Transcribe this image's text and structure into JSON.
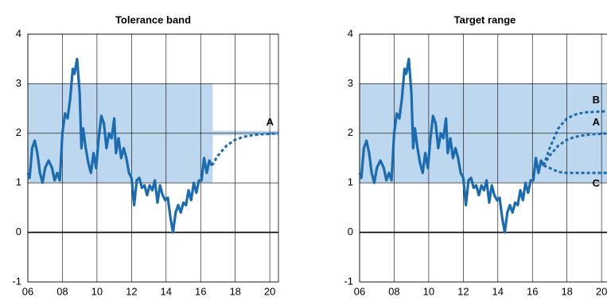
{
  "chart_data": [
    {
      "type": "line",
      "title": "Tolerance band",
      "xlim": [
        2006,
        2020.5
      ],
      "ylim": [
        -1,
        4
      ],
      "yticks": [
        -1,
        0,
        1,
        2,
        3,
        4
      ],
      "xticks": [
        {
          "value": 2006,
          "label": "06"
        },
        {
          "value": 2008,
          "label": "08"
        },
        {
          "value": 2010,
          "label": "10"
        },
        {
          "value": 2012,
          "label": "12"
        },
        {
          "value": 2014,
          "label": "14"
        },
        {
          "value": 2016,
          "label": "16"
        },
        {
          "value": 2018,
          "label": "18"
        },
        {
          "value": 2020,
          "label": "20"
        }
      ],
      "grid": true,
      "band_color": "#bdd7ee",
      "bands": [
        {
          "x": [
            2006,
            2016.7
          ],
          "y": [
            1,
            3
          ]
        },
        {
          "x": [
            2016.7,
            2020.5
          ],
          "y": [
            1.96,
            2.05
          ]
        }
      ],
      "series": [
        {
          "color": "#1a6bb0",
          "dashed": false,
          "x": [
            2006.0,
            2006.1,
            2006.25,
            2006.4,
            2006.55,
            2006.7,
            2006.85,
            2007.0,
            2007.2,
            2007.4,
            2007.55,
            2007.7,
            2007.85,
            2008.0,
            2008.15,
            2008.3,
            2008.45,
            2008.6,
            2008.7,
            2008.85,
            2009.0,
            2009.1,
            2009.2,
            2009.35,
            2009.5,
            2009.65,
            2009.8,
            2009.95,
            2010.1,
            2010.25,
            2010.4,
            2010.55,
            2010.7,
            2010.85,
            2011.0,
            2011.1,
            2011.25,
            2011.4,
            2011.55,
            2011.7,
            2011.85,
            2012.0,
            2012.15,
            2012.3,
            2012.45,
            2012.6,
            2012.75,
            2012.9,
            2013.05,
            2013.2,
            2013.35,
            2013.5,
            2013.65,
            2013.8,
            2013.95,
            2014.1,
            2014.25,
            2014.4,
            2014.55,
            2014.7,
            2014.85,
            2015.0,
            2015.15,
            2015.3,
            2015.45,
            2015.6,
            2015.75,
            2015.9,
            2016.05,
            2016.2,
            2016.35,
            2016.5,
            2016.65
          ],
          "values": [
            1.2,
            1.1,
            1.7,
            1.85,
            1.6,
            1.2,
            1.0,
            1.3,
            1.45,
            1.3,
            1.05,
            1.2,
            1.05,
            2.0,
            2.4,
            2.3,
            2.7,
            3.3,
            3.2,
            3.5,
            2.8,
            1.7,
            2.1,
            1.7,
            1.4,
            1.2,
            1.6,
            1.3,
            1.9,
            2.35,
            2.2,
            1.7,
            2.0,
            1.9,
            2.3,
            1.6,
            1.9,
            1.5,
            1.7,
            1.5,
            1.2,
            1.1,
            0.55,
            1.05,
            1.1,
            0.9,
            0.95,
            0.75,
            0.95,
            0.85,
            1.05,
            0.6,
            0.95,
            0.75,
            0.65,
            0.7,
            0.3,
            0.0,
            0.4,
            0.55,
            0.4,
            0.6,
            0.55,
            0.85,
            0.65,
            1.0,
            0.8,
            1.05,
            1.05,
            1.5,
            1.2,
            1.45,
            1.35
          ]
        },
        {
          "name": "A",
          "color": "#1a6bb0",
          "dashed": true,
          "x": [
            2016.65,
            2017,
            2017.5,
            2018,
            2018.5,
            2019,
            2019.5,
            2020.5
          ],
          "values": [
            1.35,
            1.55,
            1.75,
            1.87,
            1.93,
            1.96,
            1.98,
            2.0
          ]
        }
      ]
    },
    {
      "type": "line",
      "title": "Target range",
      "xlim": [
        2006,
        2020.5
      ],
      "ylim": [
        -1,
        4
      ],
      "yticks": [
        -1,
        0,
        1,
        2,
        3,
        4
      ],
      "xticks": [
        {
          "value": 2006,
          "label": "06"
        },
        {
          "value": 2008,
          "label": "08"
        },
        {
          "value": 2010,
          "label": "10"
        },
        {
          "value": 2012,
          "label": "12"
        },
        {
          "value": 2014,
          "label": "14"
        },
        {
          "value": 2016,
          "label": "16"
        },
        {
          "value": 2018,
          "label": "18"
        },
        {
          "value": 2020,
          "label": "20"
        }
      ],
      "grid": true,
      "band_color": "#bdd7ee",
      "bands": [
        {
          "x": [
            2006,
            2020.5
          ],
          "y": [
            1,
            3
          ]
        }
      ],
      "series": [
        {
          "color": "#1a6bb0",
          "dashed": false,
          "x": [
            2006.0,
            2006.1,
            2006.25,
            2006.4,
            2006.55,
            2006.7,
            2006.85,
            2007.0,
            2007.2,
            2007.4,
            2007.55,
            2007.7,
            2007.85,
            2008.0,
            2008.15,
            2008.3,
            2008.45,
            2008.6,
            2008.7,
            2008.85,
            2009.0,
            2009.1,
            2009.2,
            2009.35,
            2009.5,
            2009.65,
            2009.8,
            2009.95,
            2010.1,
            2010.25,
            2010.4,
            2010.55,
            2010.7,
            2010.85,
            2011.0,
            2011.1,
            2011.25,
            2011.4,
            2011.55,
            2011.7,
            2011.85,
            2012.0,
            2012.15,
            2012.3,
            2012.45,
            2012.6,
            2012.75,
            2012.9,
            2013.05,
            2013.2,
            2013.35,
            2013.5,
            2013.65,
            2013.8,
            2013.95,
            2014.1,
            2014.25,
            2014.4,
            2014.55,
            2014.7,
            2014.85,
            2015.0,
            2015.15,
            2015.3,
            2015.45,
            2015.6,
            2015.75,
            2015.9,
            2016.05,
            2016.2,
            2016.35,
            2016.5,
            2016.65
          ],
          "values": [
            1.2,
            1.1,
            1.7,
            1.85,
            1.6,
            1.2,
            1.0,
            1.3,
            1.45,
            1.3,
            1.05,
            1.2,
            1.05,
            2.0,
            2.4,
            2.3,
            2.7,
            3.3,
            3.2,
            3.5,
            2.8,
            1.7,
            2.1,
            1.7,
            1.4,
            1.2,
            1.6,
            1.3,
            1.9,
            2.35,
            2.2,
            1.7,
            2.0,
            1.9,
            2.3,
            1.6,
            1.9,
            1.5,
            1.7,
            1.5,
            1.2,
            1.1,
            0.55,
            1.05,
            1.1,
            0.9,
            0.95,
            0.75,
            0.95,
            0.85,
            1.05,
            0.6,
            0.95,
            0.75,
            0.65,
            0.7,
            0.3,
            0.0,
            0.4,
            0.55,
            0.4,
            0.6,
            0.55,
            0.85,
            0.65,
            1.0,
            0.8,
            1.05,
            1.05,
            1.5,
            1.2,
            1.45,
            1.35
          ]
        },
        {
          "name": "B",
          "color": "#1a6bb0",
          "dashed": true,
          "x": [
            2016.65,
            2017,
            2017.5,
            2018,
            2018.5,
            2019,
            2020.5
          ],
          "values": [
            1.35,
            1.7,
            2.1,
            2.3,
            2.38,
            2.42,
            2.45
          ]
        },
        {
          "name": "A",
          "color": "#1a6bb0",
          "dashed": true,
          "x": [
            2016.65,
            2017,
            2017.5,
            2018,
            2018.5,
            2019,
            2019.5,
            2020.5
          ],
          "values": [
            1.35,
            1.55,
            1.75,
            1.87,
            1.93,
            1.96,
            1.98,
            2.0
          ]
        },
        {
          "name": "C",
          "color": "#1a6bb0",
          "dashed": true,
          "x": [
            2016.65,
            2017,
            2017.5,
            2018,
            2019,
            2020.5
          ],
          "values": [
            1.35,
            1.3,
            1.22,
            1.2,
            1.2,
            1.2
          ]
        }
      ]
    }
  ]
}
